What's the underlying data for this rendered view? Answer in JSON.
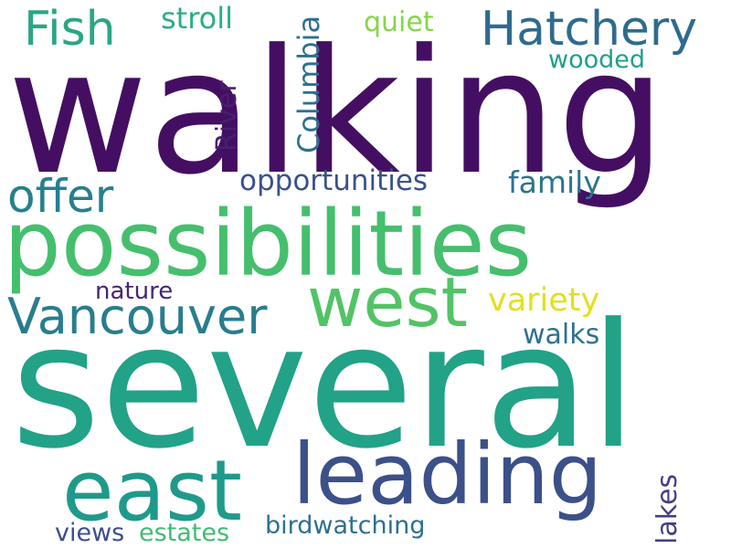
{
  "cloud": {
    "background": "#ffffff",
    "words": [
      {
        "id": "walking",
        "text": "walking",
        "color": "#440f62"
      },
      {
        "id": "several",
        "text": "several",
        "color": "#22a287"
      },
      {
        "id": "possibilities",
        "text": "possibilities",
        "color": "#45bf6d"
      },
      {
        "id": "leading",
        "text": "leading",
        "color": "#3c5089"
      },
      {
        "id": "east",
        "text": "east",
        "color": "#1f9a8a"
      },
      {
        "id": "west",
        "text": "west",
        "color": "#52c366"
      },
      {
        "id": "hatchery",
        "text": "Hatchery",
        "color": "#2f6b8e"
      },
      {
        "id": "fish",
        "text": "Fish",
        "color": "#2aa685"
      },
      {
        "id": "vancouver",
        "text": "Vancouver",
        "color": "#287d8e"
      },
      {
        "id": "offer",
        "text": "offer",
        "color": "#277f8e"
      },
      {
        "id": "variety",
        "text": "variety",
        "color": "#e3e01b"
      },
      {
        "id": "opportunities",
        "text": "opportunities",
        "color": "#3b518b"
      },
      {
        "id": "family",
        "text": "family",
        "color": "#2b758e"
      },
      {
        "id": "stroll",
        "text": "stroll",
        "color": "#29af7f"
      },
      {
        "id": "quiet",
        "text": "quiet",
        "color": "#86d549"
      },
      {
        "id": "wooded",
        "text": "wooded",
        "color": "#1fa088"
      },
      {
        "id": "columbia",
        "text": "Columbia",
        "color": "#2d718e"
      },
      {
        "id": "river",
        "text": "River",
        "color": "#481f70"
      },
      {
        "id": "nature",
        "text": "nature",
        "color": "#482475"
      },
      {
        "id": "walks",
        "text": "walks",
        "color": "#2c728e"
      },
      {
        "id": "lakes",
        "text": "lakes",
        "color": "#433e85"
      },
      {
        "id": "birdwatching",
        "text": "birdwatching",
        "color": "#2e6f8e"
      },
      {
        "id": "views",
        "text": "views",
        "color": "#3d4e8a"
      },
      {
        "id": "estates",
        "text": "estates",
        "color": "#3fbc73"
      }
    ]
  }
}
